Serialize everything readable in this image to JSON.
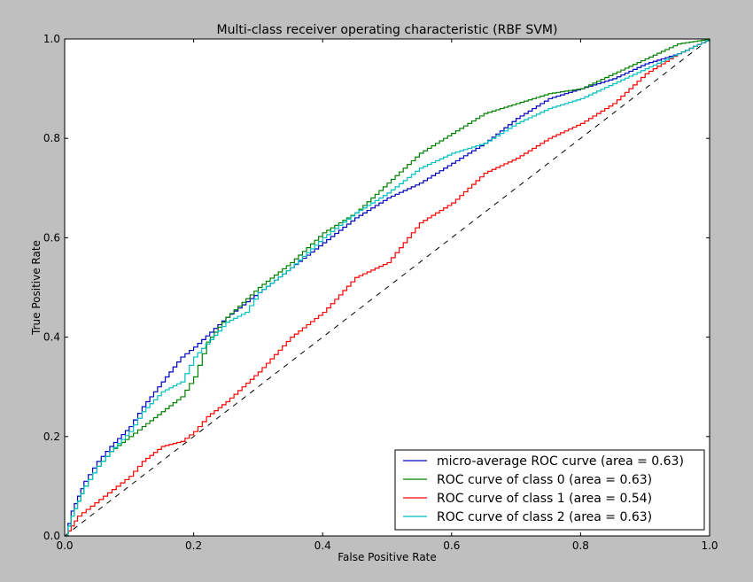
{
  "chart_data": {
    "type": "line",
    "title": "Multi-class receiver operating characteristic (RBF SVM)",
    "xlabel": "False Positive Rate",
    "ylabel": "True Positive Rate",
    "xlim": [
      0.0,
      1.0
    ],
    "ylim": [
      0.0,
      1.0
    ],
    "xticks": [
      "0.0",
      "0.2",
      "0.4",
      "0.6",
      "0.8",
      "1.0"
    ],
    "yticks": [
      "0.0",
      "0.2",
      "0.4",
      "0.6",
      "0.8",
      "1.0"
    ],
    "grid": false,
    "legend_position": "bottom-right",
    "reference_line": {
      "x": [
        0,
        1
      ],
      "y": [
        0,
        1
      ],
      "color": "#000000",
      "style": "dashed"
    },
    "series": [
      {
        "name": "micro-average ROC curve (area = 0.63)",
        "color": "#0000bf",
        "x": [
          0,
          0.01,
          0.02,
          0.03,
          0.05,
          0.07,
          0.1,
          0.12,
          0.15,
          0.18,
          0.2,
          0.25,
          0.3,
          0.35,
          0.4,
          0.45,
          0.5,
          0.55,
          0.6,
          0.65,
          0.7,
          0.75,
          0.8,
          0.85,
          0.9,
          0.95,
          1.0
        ],
        "y": [
          0,
          0.05,
          0.08,
          0.11,
          0.15,
          0.18,
          0.22,
          0.26,
          0.31,
          0.36,
          0.38,
          0.44,
          0.49,
          0.54,
          0.59,
          0.64,
          0.68,
          0.71,
          0.75,
          0.79,
          0.84,
          0.88,
          0.9,
          0.92,
          0.95,
          0.97,
          1.0
        ]
      },
      {
        "name": "ROC curve of class 0 (area = 0.63)",
        "color": "#008000",
        "x": [
          0,
          0.01,
          0.02,
          0.03,
          0.05,
          0.07,
          0.1,
          0.12,
          0.15,
          0.18,
          0.2,
          0.22,
          0.25,
          0.3,
          0.35,
          0.4,
          0.45,
          0.5,
          0.55,
          0.6,
          0.65,
          0.7,
          0.75,
          0.8,
          0.85,
          0.9,
          0.95,
          1.0
        ],
        "y": [
          0,
          0.04,
          0.07,
          0.1,
          0.14,
          0.17,
          0.2,
          0.22,
          0.25,
          0.28,
          0.32,
          0.39,
          0.44,
          0.5,
          0.55,
          0.61,
          0.65,
          0.71,
          0.77,
          0.81,
          0.85,
          0.87,
          0.89,
          0.9,
          0.93,
          0.96,
          0.99,
          1.0
        ]
      },
      {
        "name": "ROC curve of class 1 (area = 0.54)",
        "color": "#ff0000",
        "x": [
          0,
          0.01,
          0.02,
          0.04,
          0.06,
          0.08,
          0.1,
          0.12,
          0.15,
          0.18,
          0.2,
          0.22,
          0.25,
          0.3,
          0.35,
          0.4,
          0.45,
          0.5,
          0.55,
          0.6,
          0.65,
          0.7,
          0.75,
          0.8,
          0.85,
          0.9,
          0.95,
          1.0
        ],
        "y": [
          0,
          0.02,
          0.04,
          0.06,
          0.08,
          0.1,
          0.12,
          0.15,
          0.18,
          0.19,
          0.21,
          0.24,
          0.27,
          0.33,
          0.4,
          0.45,
          0.52,
          0.55,
          0.63,
          0.67,
          0.73,
          0.76,
          0.8,
          0.83,
          0.87,
          0.93,
          0.97,
          1.0
        ]
      },
      {
        "name": "ROC curve of class 2 (area = 0.63)",
        "color": "#00bfbf",
        "x": [
          0,
          0.01,
          0.02,
          0.03,
          0.05,
          0.07,
          0.1,
          0.12,
          0.15,
          0.18,
          0.2,
          0.25,
          0.28,
          0.3,
          0.35,
          0.4,
          0.45,
          0.5,
          0.55,
          0.6,
          0.65,
          0.7,
          0.75,
          0.8,
          0.85,
          0.9,
          0.95,
          1.0
        ],
        "y": [
          0,
          0.04,
          0.07,
          0.1,
          0.14,
          0.17,
          0.21,
          0.25,
          0.29,
          0.31,
          0.36,
          0.43,
          0.45,
          0.49,
          0.54,
          0.6,
          0.65,
          0.69,
          0.74,
          0.77,
          0.79,
          0.83,
          0.86,
          0.88,
          0.91,
          0.94,
          0.97,
          1.0
        ]
      }
    ]
  }
}
